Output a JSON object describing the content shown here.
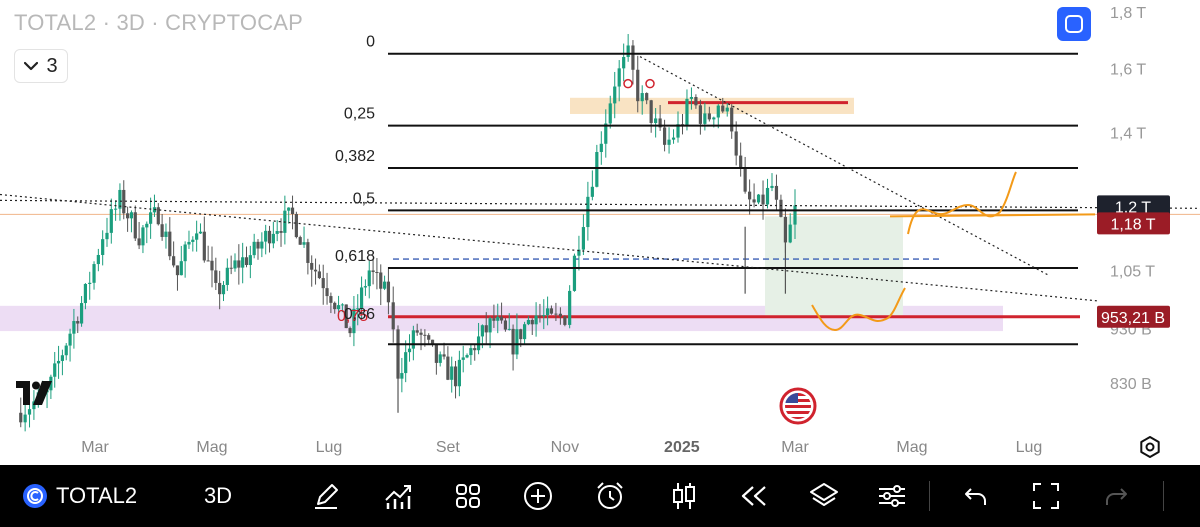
{
  "header": {
    "symbol_line": "TOTAL2 · 3D · CRYPTOCAP",
    "indicator_count": "3"
  },
  "price_tags": {
    "last": {
      "label": "1,2 T",
      "color": "#1e222d"
    },
    "secondary": {
      "label": "1,18 T",
      "color": "#9b1c26"
    },
    "level": {
      "label": "953,21 B",
      "color": "#9b1c26"
    }
  },
  "toolbar": {
    "symbol": "TOTAL2",
    "timeframe": "3D"
  },
  "colors": {
    "up": "#1b9e7e",
    "down": "#555555",
    "zone": "#e6f0e6",
    "fib": "#111111",
    "red": "#d0232e",
    "orange": "#f39a18"
  },
  "chart_data": {
    "type": "candlestick",
    "title": "TOTAL2 · 3D · CRYPTOCAP",
    "y_axis": {
      "scale": "log",
      "ticks": [
        {
          "label": "1,8 T",
          "value": 1800
        },
        {
          "label": "1,6 T",
          "value": 1600
        },
        {
          "label": "1,4 T",
          "value": 1400
        },
        {
          "label": "1,2 T",
          "value": 1200
        },
        {
          "label": "1,05 T",
          "value": 1050
        },
        {
          "label": "930 B",
          "value": 930
        },
        {
          "label": "830 B",
          "value": 830
        }
      ]
    },
    "x_axis": {
      "ticks": [
        {
          "label": "Mar",
          "date": "2024-03-01",
          "bold": false
        },
        {
          "label": "Mag",
          "date": "2024-05-01",
          "bold": false
        },
        {
          "label": "Lug",
          "date": "2024-07-01",
          "bold": false
        },
        {
          "label": "Set",
          "date": "2024-09-01",
          "bold": false
        },
        {
          "label": "Nov",
          "date": "2024-11-01",
          "bold": false
        },
        {
          "label": "2025",
          "date": "2025-01-01",
          "bold": true
        },
        {
          "label": "Mar",
          "date": "2025-03-01",
          "bold": false
        },
        {
          "label": "Mag",
          "date": "2025-05-01",
          "bold": false
        },
        {
          "label": "Lug",
          "date": "2025-07-01",
          "bold": false
        }
      ]
    },
    "price_path": [
      [
        "2024-01-20",
        780
      ],
      [
        "2024-02-05",
        810
      ],
      [
        "2024-02-15",
        905
      ],
      [
        "2024-02-25",
        1000
      ],
      [
        "2024-03-05",
        1130
      ],
      [
        "2024-03-14",
        1215
      ],
      [
        "2024-03-24",
        1130
      ],
      [
        "2024-04-03",
        1185
      ],
      [
        "2024-04-13",
        1040
      ],
      [
        "2024-04-23",
        1160
      ],
      [
        "2024-05-03",
        1000
      ],
      [
        "2024-05-13",
        1060
      ],
      [
        "2024-05-23",
        1090
      ],
      [
        "2024-06-02",
        1150
      ],
      [
        "2024-06-12",
        1175
      ],
      [
        "2024-06-22",
        1065
      ],
      [
        "2024-07-02",
        1000
      ],
      [
        "2024-07-12",
        925
      ],
      [
        "2024-07-22",
        1050
      ],
      [
        "2024-08-01",
        990
      ],
      [
        "2024-08-06",
        850
      ],
      [
        "2024-08-16",
        925
      ],
      [
        "2024-08-26",
        870
      ],
      [
        "2024-09-05",
        840
      ],
      [
        "2024-09-15",
        900
      ],
      [
        "2024-09-25",
        945
      ],
      [
        "2024-10-05",
        900
      ],
      [
        "2024-10-15",
        960
      ],
      [
        "2024-10-25",
        945
      ],
      [
        "2024-11-01",
        955
      ],
      [
        "2024-11-06",
        1075
      ],
      [
        "2024-11-13",
        1230
      ],
      [
        "2024-11-20",
        1390
      ],
      [
        "2024-11-27",
        1560
      ],
      [
        "2024-12-04",
        1640
      ],
      [
        "2024-12-09",
        1520
      ],
      [
        "2024-12-16",
        1450
      ],
      [
        "2024-12-23",
        1360
      ],
      [
        "2024-12-30",
        1410
      ],
      [
        "2025-01-06",
        1500
      ],
      [
        "2025-01-13",
        1430
      ],
      [
        "2025-01-20",
        1490
      ],
      [
        "2025-01-27",
        1430
      ],
      [
        "2025-02-03",
        1215
      ],
      [
        "2025-02-10",
        1200
      ],
      [
        "2025-02-17",
        1250
      ],
      [
        "2025-02-24",
        1100
      ],
      [
        "2025-03-01",
        1190
      ]
    ],
    "fibonacci": [
      {
        "label": "0",
        "value": 1650
      },
      {
        "label": "0,25",
        "value": 1420
      },
      {
        "label": "0,382",
        "value": 1300
      },
      {
        "label": "0,5",
        "value": 1190
      },
      {
        "label": "0,618",
        "value": 1055
      },
      {
        "label": "0,75",
        "value": 953
      },
      {
        "label": "0,86",
        "value": 930
      }
    ],
    "horizontal_levels": [
      {
        "value": 1175,
        "style": "orange-thin"
      },
      {
        "value": 953,
        "style": "red"
      },
      {
        "value": 1075,
        "style": "dashed-blue"
      }
    ]
  }
}
